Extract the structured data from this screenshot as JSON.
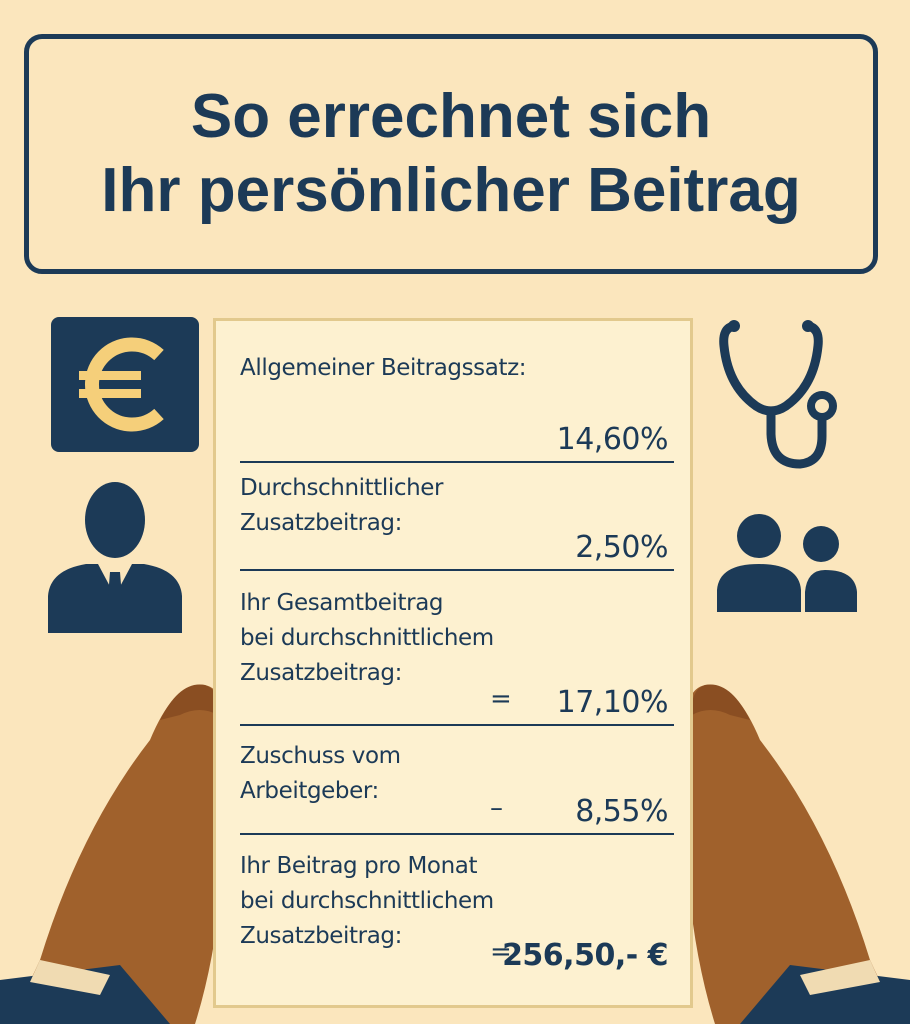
{
  "header": {
    "title_line1": "So errechnet sich",
    "title_line2": "Ihr persönlicher Beitrag"
  },
  "icons": [
    "euro-icon",
    "person-icon",
    "stethoscope-icon",
    "people-group-icon",
    "hands-holding-paper"
  ],
  "colors": {
    "background": "#fbe6bd",
    "navy": "#1c3a57",
    "paper": "#fdf1d0",
    "skin": "#a0612c",
    "gold": "#f5cf7a"
  },
  "calculation": {
    "rows": [
      {
        "label_lines": [
          "Allgemeiner Beitragssatz:"
        ],
        "operator": "",
        "value": "14,60%"
      },
      {
        "label_lines": [
          "Durchschnittlicher",
          "Zusatzbeitrag:"
        ],
        "operator": "",
        "value": "2,50%"
      },
      {
        "label_lines": [
          "Ihr Gesamtbeitrag",
          "bei durchschnittlichem",
          "Zusatzbeitrag:"
        ],
        "operator": "=",
        "value": "17,10%"
      },
      {
        "label_lines": [
          "Zuschuss vom",
          "Arbeitgeber:"
        ],
        "operator": "–",
        "value": "8,55%"
      },
      {
        "label_lines": [
          "Ihr Beitrag pro Monat",
          "bei durchschnittlichem",
          "Zusatzbeitrag:"
        ],
        "operator": "=",
        "value": "256,50,- €"
      }
    ]
  }
}
